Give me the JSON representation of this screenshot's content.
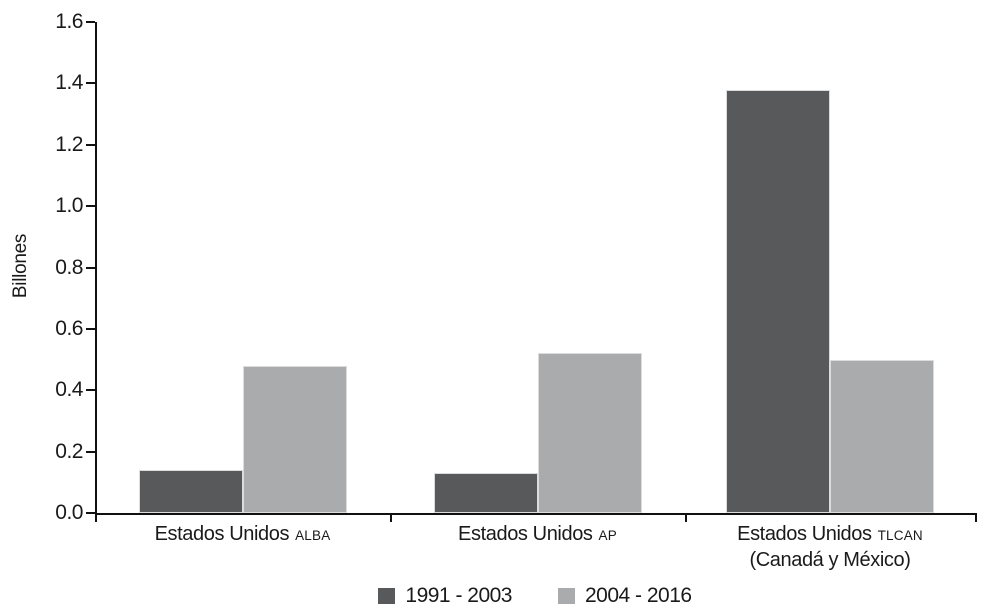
{
  "chart_data": {
    "type": "bar",
    "title": "",
    "y_axis_title": "Billones",
    "ylim": [
      0,
      1.6
    ],
    "ytick_step": 0.2,
    "ytick_labels": [
      "0.0",
      "0.2",
      "0.4",
      "0.6",
      "0.8",
      "1.0",
      "1.2",
      "1.4",
      "1.6"
    ],
    "grid": false,
    "legend_position": "bottom",
    "categories": [
      {
        "main": "Estados Unidos",
        "suffix": "ALBA",
        "line2": ""
      },
      {
        "main": "Estados Unidos",
        "suffix": "AP",
        "line2": ""
      },
      {
        "main": "Estados Unidos",
        "suffix": "TLCAN",
        "line2": "(Canadá y México)"
      }
    ],
    "series": [
      {
        "name": "1991 - 2003",
        "color": "#58595B",
        "values": [
          0.14,
          0.13,
          1.38
        ]
      },
      {
        "name": "2004 - 2016",
        "color": "#A9ABAC",
        "values": [
          0.48,
          0.52,
          0.5
        ]
      }
    ]
  },
  "colors": {
    "axis": "#111111",
    "text": "#1A1A1A",
    "background": "#FFFFFF",
    "bar_border": "#DCDCDC"
  }
}
